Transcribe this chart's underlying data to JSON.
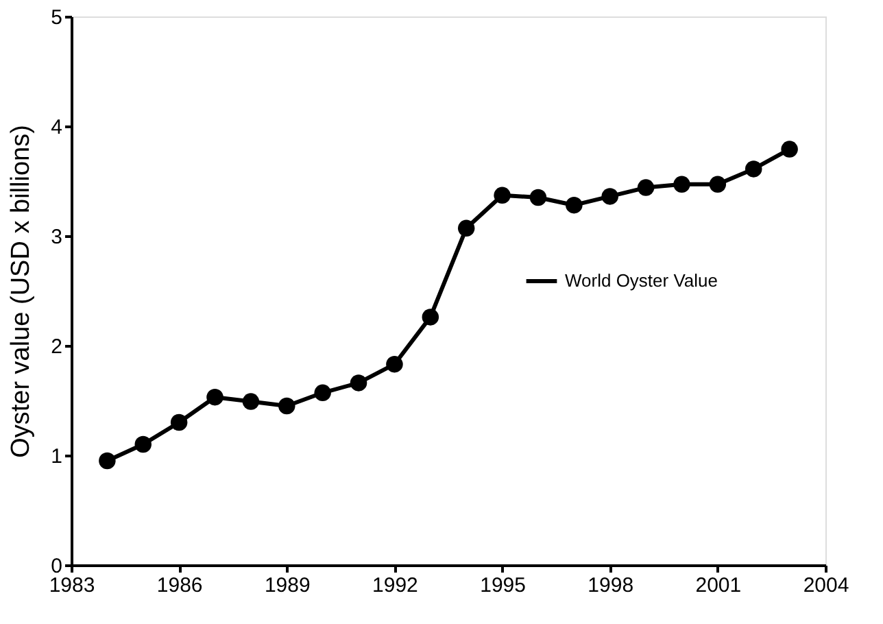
{
  "chart_data": {
    "type": "line",
    "ylabel": "Oyster value (USD x billions)",
    "x": [
      1984,
      1985,
      1986,
      1987,
      1988,
      1989,
      1990,
      1991,
      1992,
      1993,
      1994,
      1995,
      1996,
      1997,
      1998,
      1999,
      2000,
      2001,
      2002,
      2003
    ],
    "series": [
      {
        "name": "World Oyster Value",
        "color": "#000000",
        "values": [
          0.95,
          1.1,
          1.3,
          1.53,
          1.49,
          1.45,
          1.57,
          1.66,
          1.83,
          2.26,
          3.07,
          3.37,
          3.35,
          3.28,
          3.36,
          3.44,
          3.47,
          3.47,
          3.61,
          3.79
        ]
      }
    ],
    "xlim": [
      1983,
      2004
    ],
    "xticks": [
      1983,
      1986,
      1989,
      1992,
      1995,
      1998,
      2001,
      2004
    ],
    "ylim": [
      0,
      5
    ],
    "yticks": [
      0,
      1,
      2,
      3,
      4,
      5
    ],
    "marker": "circle",
    "line_style": "solid",
    "grid": false,
    "legend": "right"
  }
}
